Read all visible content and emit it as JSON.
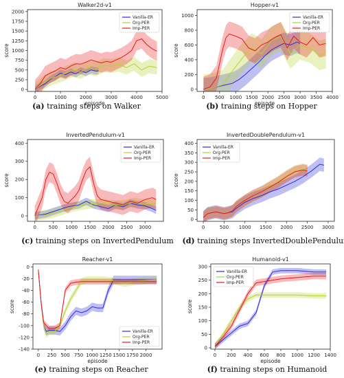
{
  "series_names": [
    "Vanilla-ER",
    "Org-PER",
    "Imp-PER"
  ],
  "colors": {
    "Vanilla-ER": "#2b2bdc",
    "Org-PER": "#b9cf2e",
    "Imp-PER": "#e8191b"
  },
  "chart_data": [
    {
      "type": "line",
      "title": "Walker2d-v1",
      "xlabel": "episode",
      "ylabel": "score",
      "xlim": [
        -300,
        5000
      ],
      "ylim": [
        -50,
        2050
      ],
      "xticks": [
        0,
        1000,
        2000,
        3000,
        4000,
        5000
      ],
      "yticks": [
        0,
        250,
        500,
        750,
        1000,
        1250,
        1500,
        1750,
        2000
      ],
      "legend": "top-right",
      "caption_letter": "(a)",
      "caption_text": "training steps on Walker",
      "series": [
        {
          "name": "Vanilla-ER",
          "x": [
            0,
            200,
            400,
            600,
            800,
            1000,
            1200,
            1400,
            1600,
            1800,
            2000,
            2200,
            2400,
            2500
          ],
          "y": [
            0,
            80,
            150,
            260,
            330,
            420,
            380,
            450,
            400,
            480,
            430,
            500,
            470,
            480
          ],
          "band": 90
        },
        {
          "name": "Org-PER",
          "x": [
            0,
            300,
            600,
            900,
            1200,
            1500,
            1800,
            2100,
            2400,
            2700,
            3000,
            3300,
            3600,
            3900,
            4200,
            4500,
            4800
          ],
          "y": [
            0,
            150,
            280,
            340,
            420,
            500,
            450,
            560,
            520,
            620,
            600,
            640,
            560,
            660,
            500,
            600,
            560
          ],
          "band": 180
        },
        {
          "name": "Imp-PER",
          "x": [
            0,
            200,
            400,
            600,
            800,
            1000,
            1200,
            1400,
            1600,
            1800,
            2000,
            2200,
            2400,
            2600,
            2800,
            3000,
            3200,
            3400,
            3600,
            3800,
            4000,
            4200,
            4400,
            4600,
            4800
          ],
          "y": [
            0,
            150,
            350,
            420,
            480,
            560,
            520,
            600,
            660,
            650,
            700,
            760,
            720,
            680,
            720,
            700,
            760,
            820,
            900,
            1000,
            1250,
            1300,
            1150,
            1050,
            980
          ],
          "band": 250
        }
      ]
    },
    {
      "type": "line",
      "title": "Hopper-v1",
      "xlabel": "episode",
      "ylabel": "score",
      "xlim": [
        -200,
        4000
      ],
      "ylim": [
        -30,
        1080
      ],
      "xticks": [
        0,
        500,
        1000,
        1500,
        2000,
        2500,
        3000,
        3500,
        4000
      ],
      "yticks": [
        0,
        200,
        400,
        600,
        800,
        1000
      ],
      "legend": "top-right",
      "caption_letter": "(b)",
      "caption_text": "training steps on Hopper",
      "series": [
        {
          "name": "Vanilla-ER",
          "x": [
            0,
            300,
            500,
            700,
            900,
            1100,
            1300,
            1500,
            1700,
            1900,
            2100,
            2300,
            2500,
            2700,
            2900,
            3000
          ],
          "y": [
            0,
            20,
            40,
            60,
            80,
            130,
            200,
            280,
            360,
            450,
            530,
            580,
            620,
            600,
            640,
            620
          ],
          "band": 150
        },
        {
          "name": "Org-PER",
          "x": [
            0,
            300,
            600,
            900,
            1200,
            1500,
            1800,
            2100,
            2400,
            2700,
            3000,
            3300,
            3600,
            3800
          ],
          "y": [
            0,
            20,
            60,
            250,
            420,
            560,
            480,
            650,
            720,
            480,
            600,
            560,
            460,
            480
          ],
          "band": 200
        },
        {
          "name": "Imp-PER",
          "x": [
            0,
            200,
            400,
            500,
            600,
            700,
            800,
            1000,
            1200,
            1400,
            1600,
            1800,
            2000,
            2200,
            2400,
            2600,
            2800,
            3000,
            3200,
            3400,
            3600,
            3800
          ],
          "y": [
            0,
            30,
            150,
            350,
            550,
            700,
            750,
            720,
            680,
            560,
            520,
            600,
            640,
            700,
            740,
            560,
            720,
            640,
            600,
            700,
            600,
            620
          ],
          "band": 170
        }
      ]
    },
    {
      "type": "line",
      "title": "InvertedPendulum-v1",
      "xlabel": "",
      "ylabel": "score",
      "xlim": [
        -200,
        3500
      ],
      "ylim": [
        -30,
        420
      ],
      "xticks": [
        0,
        500,
        1000,
        1500,
        2000,
        2500,
        3000
      ],
      "yticks": [
        0,
        100,
        200,
        300,
        400
      ],
      "legend": "top-right",
      "caption_letter": "(c)",
      "caption_text": "training steps on InvertedPendulum",
      "series": [
        {
          "name": "Vanilla-ER",
          "x": [
            0,
            300,
            600,
            900,
            1200,
            1400,
            1600,
            1800,
            2000,
            2200,
            2400,
            2600,
            2800,
            3000,
            3200,
            3300
          ],
          "y": [
            0,
            10,
            30,
            50,
            60,
            80,
            60,
            50,
            40,
            60,
            50,
            70,
            60,
            55,
            40,
            30
          ],
          "band": 20
        },
        {
          "name": "Org-PER",
          "x": [
            0,
            300,
            600,
            900,
            1200,
            1500,
            1800,
            2100,
            2400,
            2700,
            3000,
            3300
          ],
          "y": [
            0,
            5,
            20,
            40,
            55,
            65,
            70,
            60,
            60,
            75,
            65,
            70
          ],
          "band": 25
        },
        {
          "name": "Imp-PER",
          "x": [
            0,
            200,
            300,
            400,
            500,
            600,
            700,
            800,
            900,
            1000,
            1100,
            1200,
            1300,
            1400,
            1500,
            1600,
            1700,
            1800,
            2000,
            2200,
            2400,
            2600,
            2800,
            3000,
            3200,
            3300
          ],
          "y": [
            0,
            100,
            200,
            240,
            230,
            180,
            120,
            80,
            70,
            90,
            110,
            140,
            200,
            250,
            270,
            180,
            110,
            90,
            80,
            70,
            60,
            80,
            70,
            90,
            100,
            90
          ],
          "band": 55
        }
      ]
    },
    {
      "type": "line",
      "title": "InvertedDoublePendulum-v1",
      "xlabel": "",
      "ylabel": "score",
      "xlim": [
        -150,
        3150
      ],
      "ylim": [
        -10,
        420
      ],
      "xticks": [
        0,
        500,
        1000,
        1500,
        2000,
        2500,
        3000
      ],
      "yticks": [
        0,
        50,
        100,
        150,
        200,
        250,
        300,
        350,
        400
      ],
      "legend": "top-left",
      "caption_letter": "(d)",
      "caption_text": "training steps InvertedDoublePendulum",
      "series": [
        {
          "name": "Vanilla-ER",
          "x": [
            0,
            100,
            200,
            300,
            400,
            500,
            600,
            700,
            800,
            1000,
            1200,
            1400,
            1600,
            1800,
            2000,
            2200,
            2400,
            2600,
            2800,
            2900
          ],
          "y": [
            10,
            30,
            35,
            40,
            35,
            30,
            35,
            40,
            60,
            90,
            110,
            125,
            145,
            160,
            180,
            200,
            225,
            255,
            290,
            285
          ],
          "band": 35
        },
        {
          "name": "Org-PER",
          "x": [
            0,
            100,
            200,
            300,
            400,
            500,
            600,
            700,
            800,
            1000,
            1200,
            1400,
            1600,
            1800,
            2000,
            2200,
            2400,
            2500
          ],
          "y": [
            10,
            30,
            35,
            40,
            35,
            30,
            35,
            45,
            70,
            100,
            125,
            145,
            175,
            200,
            230,
            255,
            265,
            260
          ],
          "band": 30
        },
        {
          "name": "Imp-PER",
          "x": [
            0,
            100,
            200,
            300,
            400,
            500,
            600,
            700,
            800,
            1000,
            1200,
            1400,
            1600,
            1800,
            2000,
            2200,
            2400,
            2500
          ],
          "y": [
            10,
            30,
            35,
            40,
            35,
            30,
            35,
            45,
            70,
            100,
            125,
            145,
            170,
            195,
            225,
            250,
            260,
            255
          ],
          "band": 30
        }
      ]
    },
    {
      "type": "line",
      "title": "Reacher-v1",
      "xlabel": "episode",
      "ylabel": "score",
      "xlim": [
        -100,
        2300
      ],
      "ylim": [
        -140,
        5
      ],
      "xticks": [
        0,
        250,
        500,
        750,
        1000,
        1250,
        1500,
        1750,
        2000
      ],
      "yticks": [
        -140,
        -120,
        -100,
        -80,
        -60,
        -40,
        -20,
        0
      ],
      "legend": "bottom-right",
      "caption_letter": "(e)",
      "caption_text": "training steps on Reacher",
      "series": [
        {
          "name": "Vanilla-ER",
          "x": [
            0,
            50,
            100,
            150,
            200,
            300,
            400,
            500,
            600,
            700,
            800,
            900,
            1000,
            1100,
            1200,
            1300,
            1400,
            1500,
            1600,
            1800,
            2000,
            2200
          ],
          "y": [
            -5,
            -60,
            -100,
            -110,
            -108,
            -108,
            -110,
            -100,
            -85,
            -75,
            -78,
            -75,
            -68,
            -70,
            -70,
            -40,
            -22,
            -22,
            -22,
            -22,
            -22,
            -22
          ],
          "band": 7
        },
        {
          "name": "Org-PER",
          "x": [
            0,
            50,
            100,
            150,
            200,
            300,
            400,
            500,
            600,
            700,
            800,
            900,
            1000,
            1200,
            1400,
            1600,
            1800,
            2000,
            2200
          ],
          "y": [
            -5,
            -60,
            -100,
            -115,
            -110,
            -110,
            -100,
            -75,
            -55,
            -40,
            -25,
            -22,
            -22,
            -22,
            -24,
            -28,
            -25,
            -23,
            -22
          ],
          "band": 6
        },
        {
          "name": "Imp-PER",
          "x": [
            0,
            50,
            100,
            150,
            200,
            300,
            400,
            500,
            600,
            700,
            800,
            1000,
            1200,
            1400,
            1600,
            1800,
            2000,
            2200
          ],
          "y": [
            -5,
            -60,
            -95,
            -100,
            -105,
            -105,
            -100,
            -40,
            -28,
            -26,
            -25,
            -25,
            -25,
            -25,
            -25,
            -25,
            -25,
            -25
          ],
          "band": 5
        }
      ]
    },
    {
      "type": "line",
      "title": "Humanoid-v1",
      "xlabel": "episode",
      "ylabel": "score",
      "xlim": [
        -50,
        1400
      ],
      "ylim": [
        -5,
        310
      ],
      "xticks": [
        0,
        200,
        400,
        600,
        800,
        1000,
        1200,
        1400
      ],
      "yticks": [
        0,
        50,
        100,
        150,
        200,
        250,
        300
      ],
      "legend": "top-left",
      "caption_letter": "(f)",
      "caption_text": "training steps on Humanoid",
      "series": [
        {
          "name": "Vanilla-ER",
          "x": [
            0,
            100,
            200,
            300,
            400,
            500,
            600,
            700,
            800,
            1000,
            1200,
            1350
          ],
          "y": [
            5,
            30,
            55,
            80,
            90,
            130,
            230,
            280,
            285,
            285,
            280,
            280
          ],
          "band": 10
        },
        {
          "name": "Org-PER",
          "x": [
            0,
            100,
            200,
            300,
            400,
            500,
            600,
            800,
            1000,
            1200,
            1350
          ],
          "y": [
            5,
            50,
            100,
            150,
            180,
            195,
            195,
            195,
            195,
            192,
            192
          ],
          "band": 10
        },
        {
          "name": "Imp-PER",
          "x": [
            0,
            100,
            200,
            300,
            400,
            500,
            600,
            700,
            800,
            1000,
            1200,
            1350
          ],
          "y": [
            5,
            40,
            80,
            140,
            200,
            240,
            245,
            250,
            255,
            260,
            265,
            265
          ],
          "band": 12
        }
      ]
    }
  ]
}
